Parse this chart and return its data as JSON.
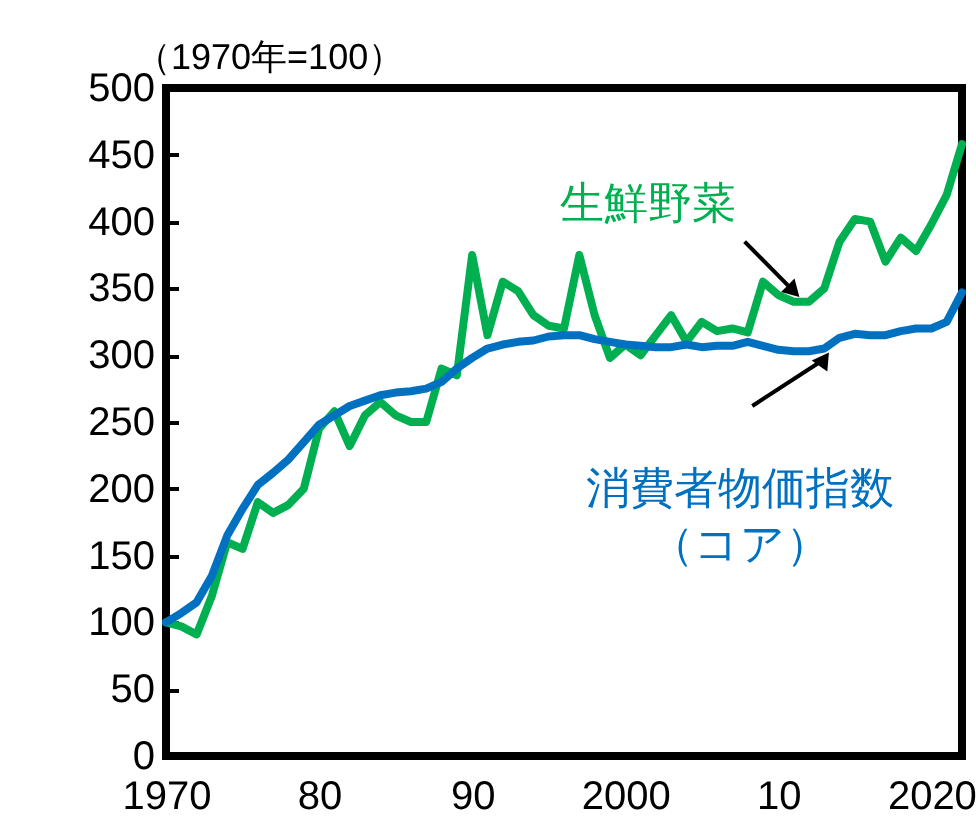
{
  "chart_data": {
    "type": "line",
    "ylabel": "（1970年=100）",
    "x": [
      1970,
      1971,
      1972,
      1973,
      1974,
      1975,
      1976,
      1977,
      1978,
      1979,
      1980,
      1981,
      1982,
      1983,
      1984,
      1985,
      1986,
      1987,
      1988,
      1989,
      1990,
      1991,
      1992,
      1993,
      1994,
      1995,
      1996,
      1997,
      1998,
      1999,
      2000,
      2001,
      2002,
      2003,
      2004,
      2005,
      2006,
      2007,
      2008,
      2009,
      2010,
      2011,
      2012,
      2013,
      2014,
      2015,
      2016,
      2017,
      2018,
      2019,
      2020,
      2021,
      2022
    ],
    "series": [
      {
        "name": "生鮮野菜",
        "color": "#00b050",
        "values": [
          100,
          97,
          91,
          120,
          160,
          155,
          190,
          182,
          188,
          200,
          245,
          258,
          232,
          255,
          265,
          255,
          250,
          250,
          290,
          285,
          375,
          315,
          355,
          348,
          330,
          322,
          320,
          375,
          330,
          298,
          308,
          300,
          315,
          330,
          310,
          325,
          318,
          320,
          317,
          355,
          345,
          340,
          340,
          350,
          385,
          402,
          400,
          370,
          388,
          378,
          398,
          420,
          458
        ]
      },
      {
        "name": "消費者物価指数（コア）",
        "color": "#0070c0",
        "values": [
          100,
          107,
          115,
          135,
          165,
          185,
          203,
          212,
          222,
          235,
          248,
          255,
          262,
          266,
          270,
          272,
          273,
          275,
          280,
          290,
          298,
          305,
          308,
          310,
          311,
          314,
          315,
          315,
          312,
          310,
          308,
          307,
          306,
          306,
          308,
          306,
          307,
          307,
          310,
          307,
          304,
          303,
          303,
          305,
          313,
          316,
          315,
          315,
          318,
          320,
          320,
          325,
          347
        ]
      }
    ],
    "xlim": [
      1970,
      2022
    ],
    "xticks": [
      {
        "value": 1970,
        "label": "1970"
      },
      {
        "value": 1980,
        "label": "80"
      },
      {
        "value": 1990,
        "label": "90"
      },
      {
        "value": 2000,
        "label": "2000"
      },
      {
        "value": 2010,
        "label": "10"
      },
      {
        "value": 2020,
        "label": "2020"
      }
    ],
    "ylim": [
      0,
      500
    ],
    "yticks": [
      0,
      50,
      100,
      150,
      200,
      250,
      300,
      350,
      400,
      450,
      500
    ],
    "grid": false,
    "legend": false,
    "marker": "none",
    "line_style": "solid"
  }
}
